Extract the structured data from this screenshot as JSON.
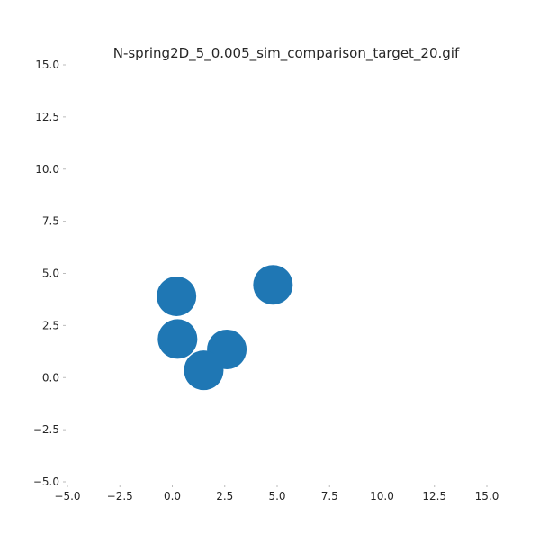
{
  "chart_data": {
    "type": "scatter",
    "title": "N-spring2D_5_0.005_sim_comparison_target_20.gif",
    "xlabel": "",
    "ylabel": "",
    "xlim": [
      -5.0,
      15.0
    ],
    "ylim": [
      -5.0,
      15.0
    ],
    "x_ticks": [
      "−5.0",
      "−2.5",
      "0.0",
      "2.5",
      "5.0",
      "7.5",
      "10.0",
      "12.5",
      "15.0"
    ],
    "y_ticks": [
      "−5.0",
      "−2.5",
      "0.0",
      "2.5",
      "5.0",
      "7.5",
      "10.0",
      "12.5",
      "15.0"
    ],
    "grid": false,
    "marker_color": "#1f77b4",
    "points": [
      {
        "x": 0.2,
        "y": 3.9
      },
      {
        "x": 0.25,
        "y": 1.85
      },
      {
        "x": 2.6,
        "y": 1.35
      },
      {
        "x": 1.5,
        "y": 0.35
      },
      {
        "x": 4.8,
        "y": 4.45
      }
    ]
  }
}
